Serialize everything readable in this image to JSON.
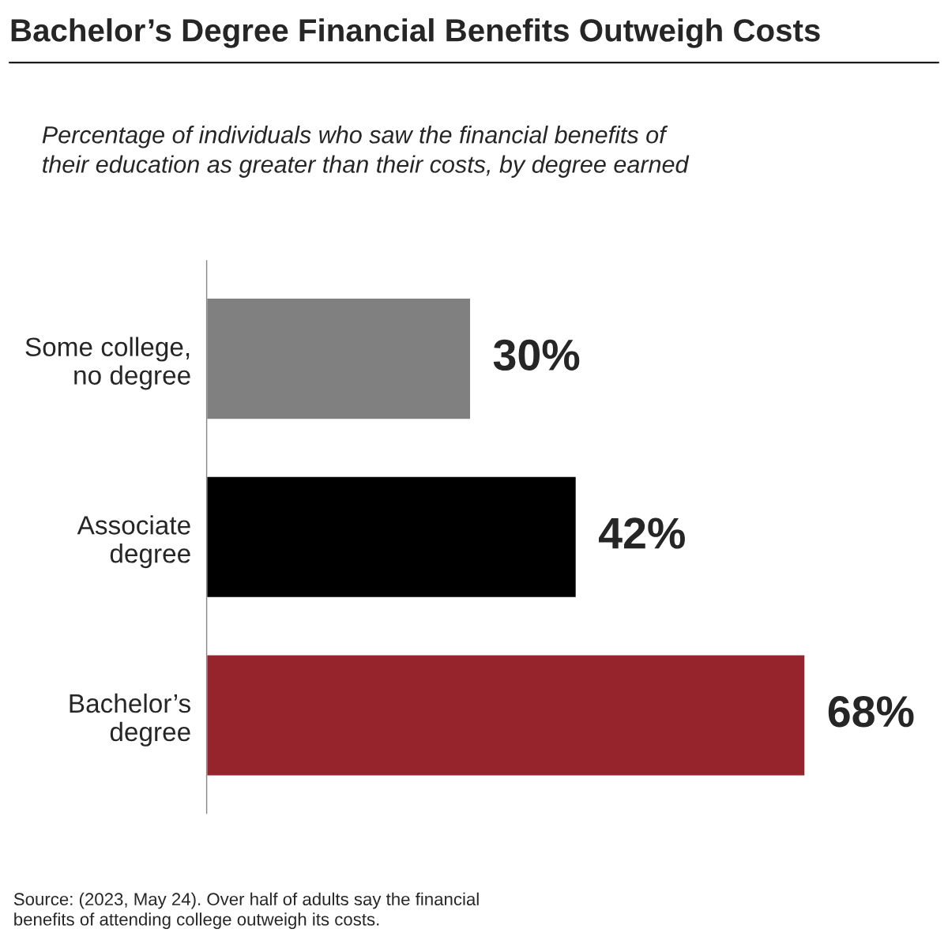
{
  "chart_data": {
    "type": "bar",
    "orientation": "horizontal",
    "title": "Bachelor’s Degree Financial Benefits Outweigh Costs",
    "subtitle": "Percentage of individuals who saw the financial benefits of\ntheir education as greater than their costs, by degree earned",
    "categories": [
      "Some college,\nno degree",
      "Associate\ndegree",
      "Bachelor’s\ndegree"
    ],
    "values": [
      30,
      42,
      68
    ],
    "value_labels": [
      "30%",
      "42%",
      "68%"
    ],
    "colors": [
      "#808080",
      "#000000",
      "#95242c"
    ],
    "annotations": [
      "Source: (2023, May 24). Over half of adults say the financial\nbenefits of attending college outweigh its costs."
    ],
    "grid": false,
    "legend": false
  }
}
